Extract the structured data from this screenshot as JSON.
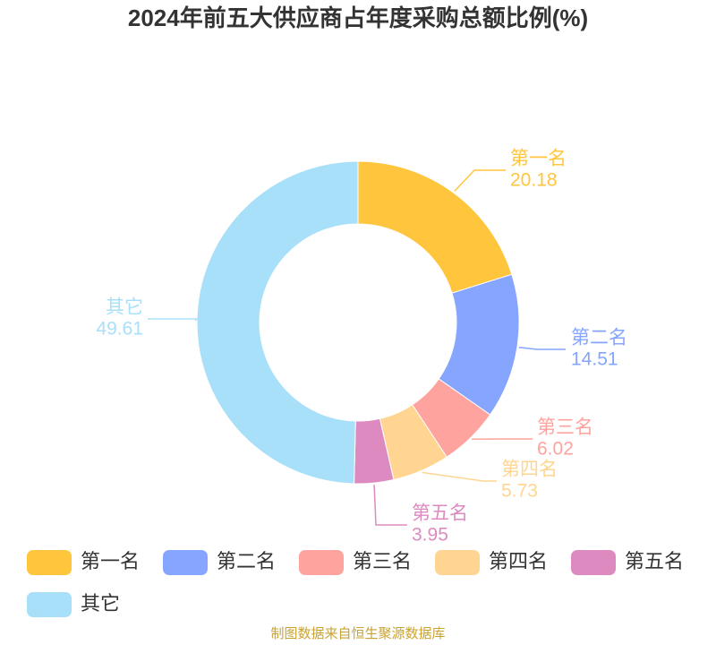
{
  "chart_data": {
    "type": "donut",
    "title": "2024年前五大供应商占年度采购总额比例(%)",
    "categories": [
      "第一名",
      "第二名",
      "第三名",
      "第四名",
      "第五名",
      "其它"
    ],
    "values": [
      20.18,
      14.51,
      6.02,
      5.73,
      3.95,
      49.61
    ],
    "colors": [
      "#ffc53d",
      "#85a5ff",
      "#ffa39e",
      "#ffd591",
      "#dd8ac0",
      "#a8e0fa"
    ],
    "legend": "bottom",
    "source": "制图数据来自恒生聚源数据库"
  }
}
